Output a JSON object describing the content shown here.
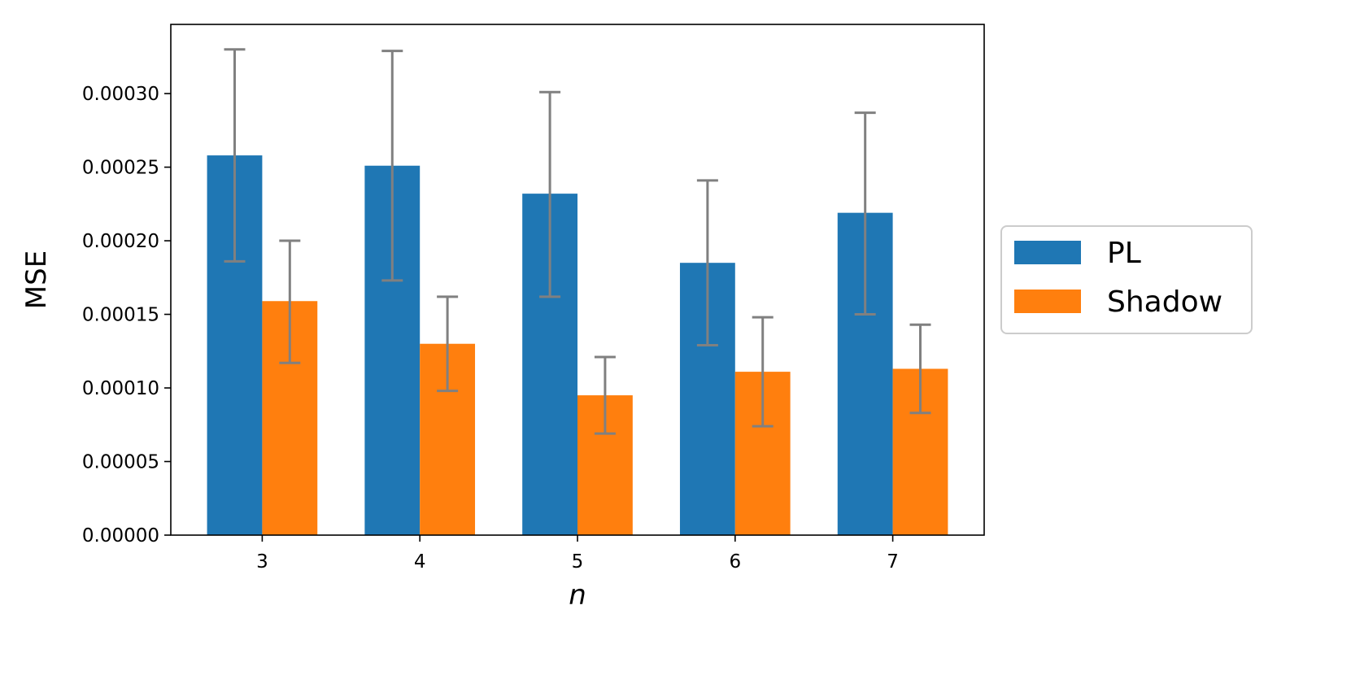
{
  "chart_data": {
    "type": "bar",
    "title": "",
    "xlabel": "n",
    "ylabel": "MSE",
    "categories": [
      "3",
      "4",
      "5",
      "6",
      "7"
    ],
    "ylim": [
      0,
      0.000347
    ],
    "yticks": [
      "0.00000",
      "0.00005",
      "0.00010",
      "0.00015",
      "0.00020",
      "0.00025",
      "0.00030"
    ],
    "ytick_values": [
      0,
      5e-05,
      0.0001,
      0.00015,
      0.0002,
      0.00025,
      0.0003
    ],
    "grid": false,
    "legend_position": "right",
    "error_bar_color": "#808080",
    "series": [
      {
        "name": "PL",
        "color": "#1f77b4",
        "values": [
          0.000258,
          0.000251,
          0.000232,
          0.000185,
          0.000219
        ],
        "err_low": [
          0.000186,
          0.000173,
          0.000162,
          0.000129,
          0.00015
        ],
        "err_high": [
          0.00033,
          0.000329,
          0.000301,
          0.000241,
          0.000287
        ]
      },
      {
        "name": "Shadow",
        "color": "#ff7f0e",
        "values": [
          0.000159,
          0.00013,
          9.5e-05,
          0.000111,
          0.000113
        ],
        "err_low": [
          0.000117,
          9.8e-05,
          6.9e-05,
          7.4e-05,
          8.3e-05
        ],
        "err_high": [
          0.0002,
          0.000162,
          0.000121,
          0.000148,
          0.000143
        ]
      }
    ]
  }
}
